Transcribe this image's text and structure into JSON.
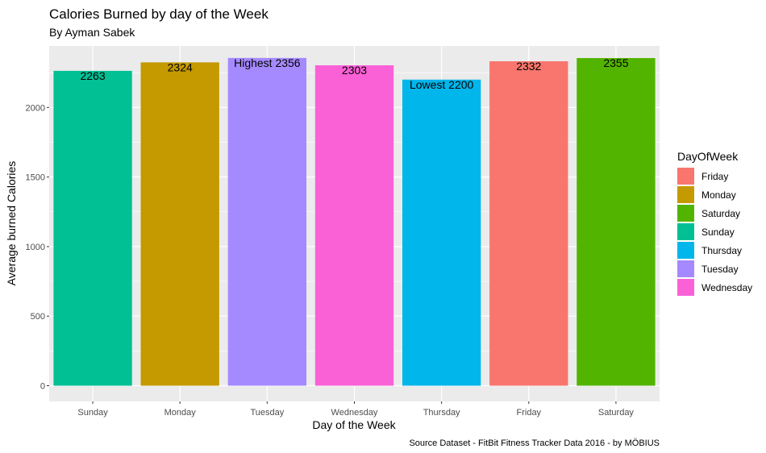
{
  "chart_data": {
    "type": "bar",
    "title": "Calories Burned by day of the Week",
    "subtitle": "By Ayman Sabek",
    "xlabel": "Day of the Week",
    "ylabel": "Average burned Calories",
    "caption": "Source Dataset - FitBit Fitness Tracker Data 2016 - by MÖBIUS",
    "categories": [
      "Sunday",
      "Monday",
      "Tuesday",
      "Wednesday",
      "Thursday",
      "Friday",
      "Saturday"
    ],
    "values": [
      2263,
      2324,
      2356,
      2303,
      2200,
      2332,
      2355
    ],
    "data_labels": [
      "2263",
      "2324",
      "Highest 2356",
      "2303",
      "Lowest 2200",
      "2332",
      "2355"
    ],
    "colors": [
      "#00C094",
      "#C49A00",
      "#A58AFF",
      "#FB61D7",
      "#00B6EB",
      "#F8766D",
      "#53B400"
    ],
    "ylim": [
      0,
      2474
    ],
    "yticks": [
      0,
      500,
      1000,
      1500,
      2000
    ],
    "grid": true,
    "legend": {
      "title": "DayOfWeek",
      "position": "right",
      "items": [
        {
          "label": "Friday",
          "color": "#F8766D"
        },
        {
          "label": "Monday",
          "color": "#C49A00"
        },
        {
          "label": "Saturday",
          "color": "#53B400"
        },
        {
          "label": "Sunday",
          "color": "#00C094"
        },
        {
          "label": "Thursday",
          "color": "#00B6EB"
        },
        {
          "label": "Tuesday",
          "color": "#A58AFF"
        },
        {
          "label": "Wednesday",
          "color": "#FB61D7"
        }
      ]
    }
  }
}
